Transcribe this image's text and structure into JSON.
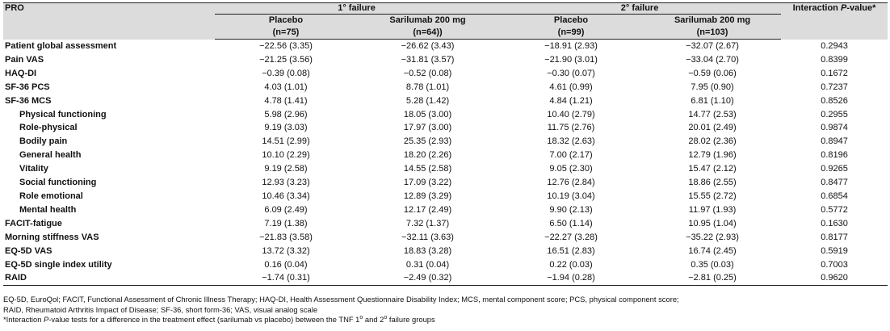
{
  "header": {
    "pro": "PRO",
    "group1": "failure",
    "group1_sup": "1°",
    "group2": "failure",
    "group2_sup": "2°",
    "interaction_pre": "Interaction ",
    "interaction_p": "P",
    "interaction_post": "-value*",
    "cols": [
      {
        "name": "Placebo",
        "n": "(n=75)"
      },
      {
        "name": "Sarilumab 200 mg",
        "n": "(n=64))"
      },
      {
        "name": "Placebo",
        "n": "(n=99)"
      },
      {
        "name": "Sarilumab 200 mg",
        "n": "(n=103)"
      }
    ]
  },
  "rows": [
    {
      "label": "Patient global assessment",
      "sub": false,
      "vals": [
        "−22.56 (3.35)",
        "−26.62 (3.43)",
        "−18.91 (2.93)",
        "−32.07 (2.67)",
        "0.2943"
      ]
    },
    {
      "label": "Pain VAS",
      "sub": false,
      "vals": [
        "−21.25 (3.56)",
        "−31.81 (3.57)",
        "−21.90 (3.01)",
        "−33.04 (2.70)",
        "0.8399"
      ]
    },
    {
      "label": "HAQ-DI",
      "sub": false,
      "vals": [
        "−0.39 (0.08)",
        "−0.52 (0.08)",
        "−0.30 (0.07)",
        "−0.59 (0.06)",
        "0.1672"
      ]
    },
    {
      "label": "SF-36 PCS",
      "sub": false,
      "vals": [
        "4.03 (1.01)",
        "8.78 (1.01)",
        "4.61 (0.99)",
        "7.95 (0.90)",
        "0.7237"
      ]
    },
    {
      "label": "SF-36 MCS",
      "sub": false,
      "vals": [
        "4.78 (1.41)",
        "5.28 (1.42)",
        "4.84 (1.21)",
        "6.81 (1.10)",
        "0.8526"
      ]
    },
    {
      "label": "Physical functioning",
      "sub": true,
      "vals": [
        "5.98 (2.96)",
        "18.05 (3.00)",
        "10.40 (2.79)",
        "14.77 (2.53)",
        "0.2955"
      ]
    },
    {
      "label": "Role-physical",
      "sub": true,
      "vals": [
        "9.19 (3.03)",
        "17.97 (3.00)",
        "11.75 (2.76)",
        "20.01 (2.49)",
        "0.9874"
      ]
    },
    {
      "label": "Bodily pain",
      "sub": true,
      "vals": [
        "14.51 (2.99)",
        "25.35 (2.93)",
        "18.32 (2.63)",
        "28.02 (2.36)",
        "0.8947"
      ]
    },
    {
      "label": "General health",
      "sub": true,
      "vals": [
        "10.10 (2.29)",
        "18.20 (2.26)",
        "7.00 (2.17)",
        "12.79 (1.96)",
        "0.8196"
      ]
    },
    {
      "label": "Vitality",
      "sub": true,
      "vals": [
        "9.19 (2.58)",
        "14.55 (2.58)",
        "9.05 (2.30)",
        "15.47 (2.12)",
        "0.9265"
      ]
    },
    {
      "label": "Social functioning",
      "sub": true,
      "vals": [
        "12.93 (3.23)",
        "17.09 (3.22)",
        "12.76 (2.84)",
        "18.86 (2.55)",
        "0.8477"
      ]
    },
    {
      "label": "Role emotional",
      "sub": true,
      "vals": [
        "10.46 (3.34)",
        "12.89 (3.29)",
        "10.19 (3.04)",
        "15.55 (2.72)",
        "0.6854"
      ]
    },
    {
      "label": "Mental health",
      "sub": true,
      "vals": [
        "6.09 (2.49)",
        "12.17 (2.49)",
        "9.90 (2.13)",
        "11.97 (1.93)",
        "0.5772"
      ]
    },
    {
      "label": "FACIT-fatigue",
      "sub": false,
      "vals": [
        "7.19 (1.38)",
        "7.32 (1.37)",
        "6.50 (1.14)",
        "10.95 (1.04)",
        "0.1630"
      ]
    },
    {
      "label": "Morning stiffness VAS",
      "sub": false,
      "vals": [
        "−21.83 (3.58)",
        "−32.11 (3.63)",
        "−22.27 (3.28)",
        "−35.22 (2.93)",
        "0.8177"
      ]
    },
    {
      "label": "EQ-5D VAS",
      "sub": false,
      "vals": [
        "13.72 (3.32)",
        "18.83 (3.28)",
        "16.51 (2.83)",
        "16.74 (2.45)",
        "0.5919"
      ]
    },
    {
      "label": "EQ-5D single index utility",
      "sub": false,
      "vals": [
        "0.16 (0.04)",
        "0.31 (0.04)",
        "0.22 (0.03)",
        "0.35 (0.03)",
        "0.7003"
      ]
    },
    {
      "label": "RAID",
      "sub": false,
      "vals": [
        "−1.74 (0.31)",
        "−2.49 (0.32)",
        "−1.94 (0.28)",
        "−2.81 (0.25)",
        "0.9620"
      ]
    }
  ],
  "footnotes": {
    "abbrev_line1": "EQ-5D, EuroQol; FACIT, Functional Assessment of Chronic Illness Therapy; HAQ-DI, Health Assessment Questionnaire Disability Index; MCS, mental component score; PCS, physical component score;",
    "abbrev_line2": "RAID, Rheumatoid Arthritis Impact of Disease; SF-36, short form-36; VAS, visual analog scale",
    "interaction_pre": "*Interaction ",
    "interaction_p": "P",
    "interaction_mid": "-value tests for a difference in the treatment effect (sarilumab vs placebo) between the TNF 1",
    "sup1": "o",
    "interaction_and": " and 2",
    "sup2": "o",
    "interaction_end": " failure groups"
  }
}
